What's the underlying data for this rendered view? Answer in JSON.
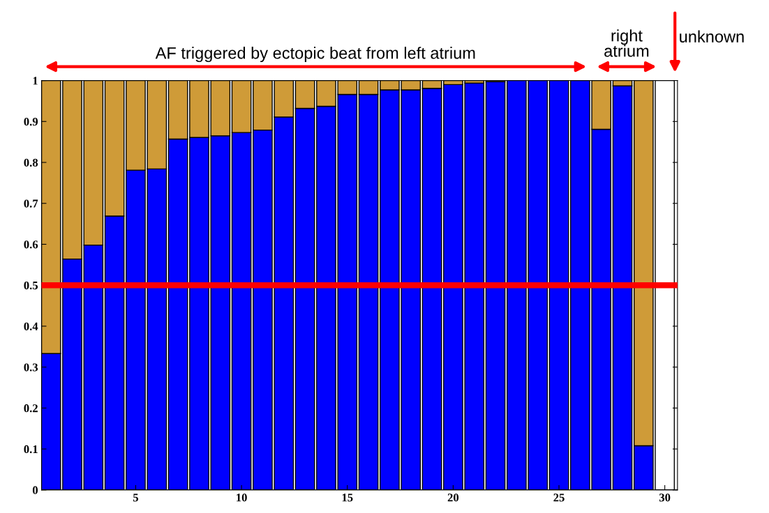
{
  "chart_data": {
    "type": "bar",
    "stacked": true,
    "x": [
      1,
      2,
      3,
      4,
      5,
      6,
      7,
      8,
      9,
      10,
      11,
      12,
      13,
      14,
      15,
      16,
      17,
      18,
      19,
      20,
      21,
      22,
      23,
      24,
      25,
      26,
      27,
      28,
      29,
      30
    ],
    "series": [
      {
        "color": "#0000ff",
        "values": [
          0.333,
          0.564,
          0.598,
          0.669,
          0.781,
          0.784,
          0.857,
          0.861,
          0.865,
          0.873,
          0.879,
          0.911,
          0.932,
          0.937,
          0.966,
          0.966,
          0.977,
          0.977,
          0.981,
          0.99,
          0.994,
          0.997,
          1,
          1,
          1,
          1,
          0.881,
          0.987,
          0.108,
          null
        ]
      },
      {
        "color": "#cf9b38",
        "values": [
          0.667,
          0.436,
          0.402,
          0.331,
          0.219,
          0.216,
          0.143,
          0.139,
          0.135,
          0.127,
          0.121,
          0.089,
          0.068,
          0.063,
          0.034,
          0.034,
          0.023,
          0.023,
          0.019,
          0.01,
          0.006,
          0.003,
          null,
          null,
          null,
          null,
          0.119,
          0.013,
          0.892,
          null
        ]
      },
      {
        "color": "#ffffff",
        "values": [
          null,
          null,
          null,
          null,
          null,
          null,
          null,
          null,
          null,
          null,
          null,
          null,
          null,
          null,
          null,
          null,
          null,
          null,
          null,
          null,
          null,
          null,
          null,
          null,
          null,
          null,
          null,
          null,
          null,
          1
        ]
      }
    ],
    "xlim": [
      0.55,
      30.6
    ],
    "xticks": [
      5,
      10,
      15,
      20,
      25,
      30
    ],
    "ylim": [
      0,
      1
    ],
    "yticks": [
      0,
      0.1,
      0.2,
      0.3,
      0.4,
      0.5,
      0.6,
      0.7,
      0.8,
      0.9,
      1
    ],
    "ref_lines": [
      {
        "axis": "y",
        "value": 0.5,
        "color": "#ff0000"
      }
    ],
    "annotations": [
      "AF triggered by ectopic beat from left atrium",
      "right\natrium",
      "unknown"
    ],
    "grid": false,
    "legend": false
  }
}
